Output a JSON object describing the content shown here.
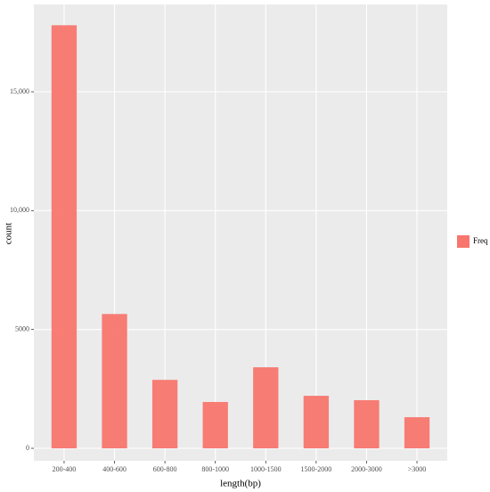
{
  "chart_data": {
    "type": "bar",
    "x_label": "length(bp)",
    "y_label": "count",
    "categories": [
      "200-400",
      "400-600",
      "600-800",
      "800-1000",
      "1000-1500",
      "1500-2000",
      "2000-3000",
      ">3000"
    ],
    "series": [
      {
        "name": "Freq",
        "color": "#F8766D",
        "values": [
          17800,
          5650,
          2880,
          1950,
          3410,
          2210,
          2025,
          1310
        ]
      }
    ],
    "ylim": [
      -525,
      18675
    ],
    "yticks": [
      0,
      5000,
      {
        "value": 10000,
        "label": "10,000"
      },
      {
        "value": 15000,
        "label": "15,000"
      }
    ],
    "grid": true,
    "legend": "right"
  }
}
